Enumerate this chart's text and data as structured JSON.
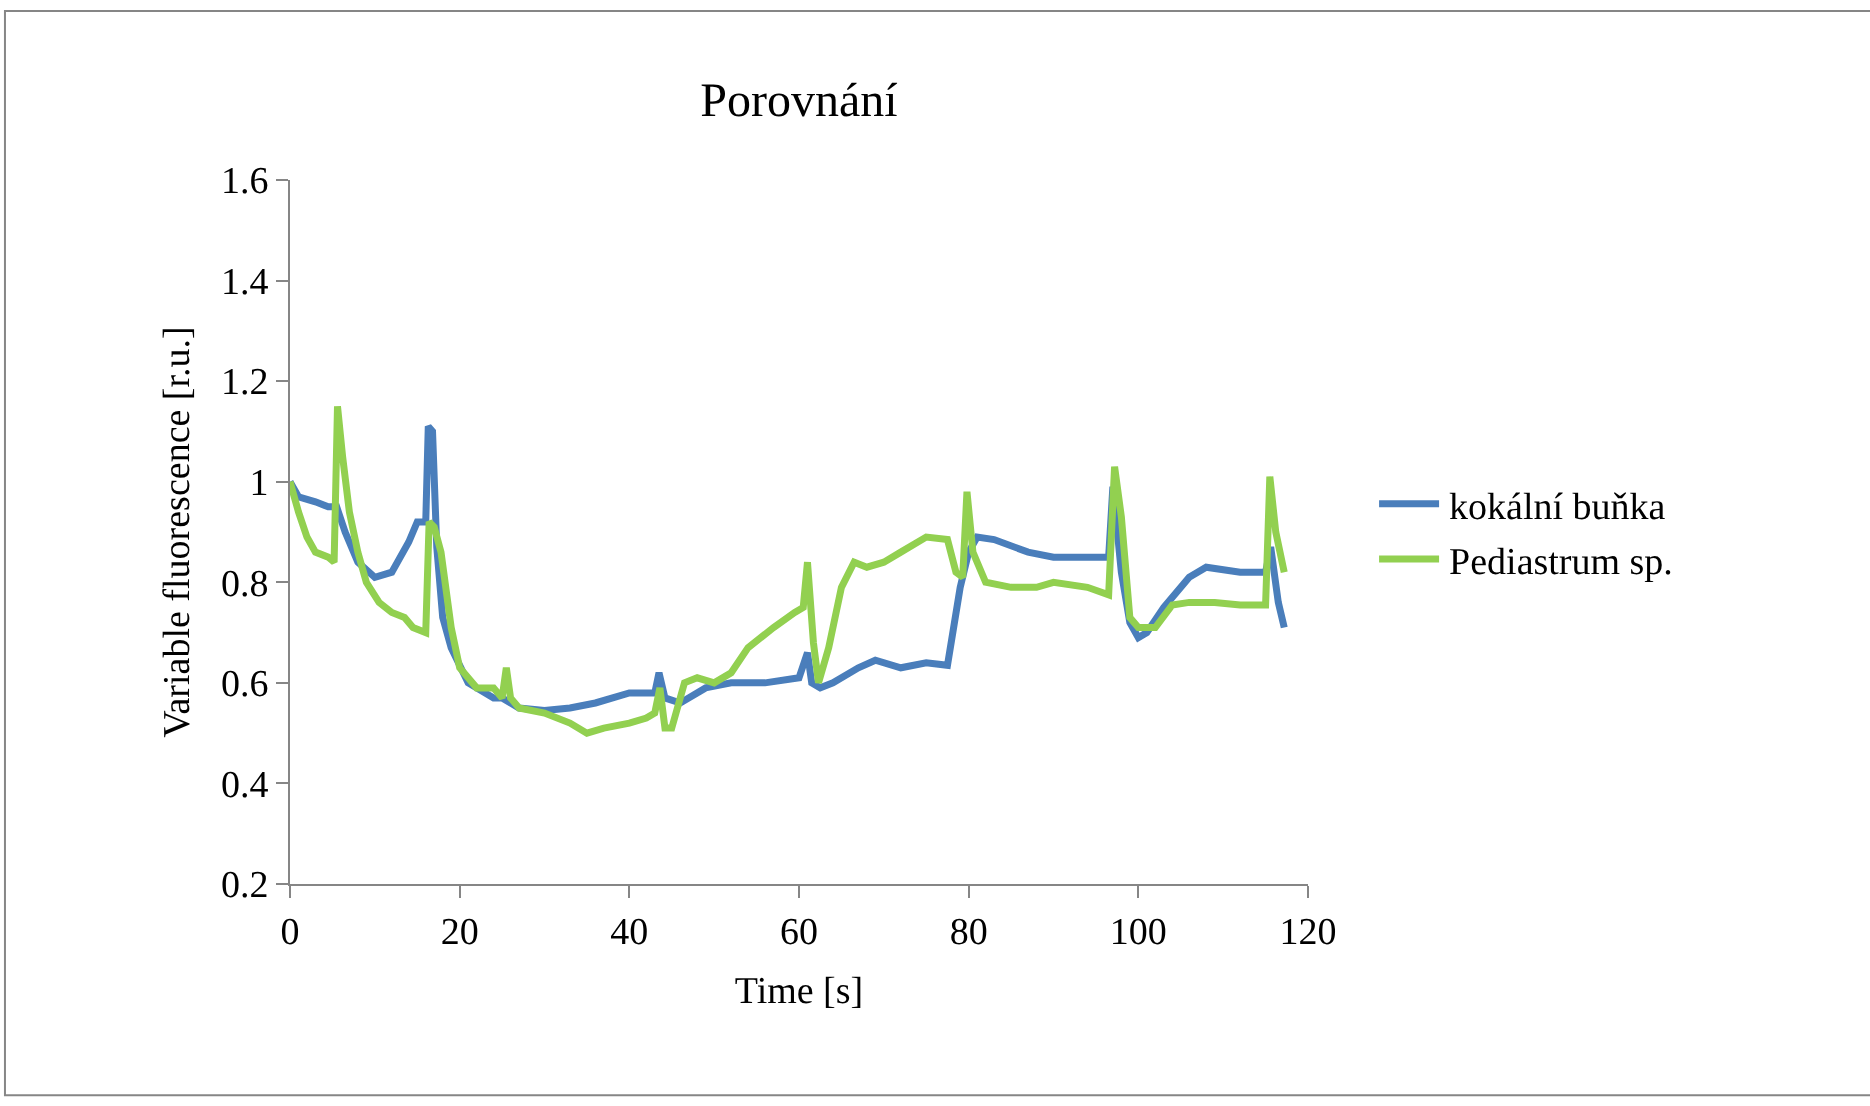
{
  "chart_data": {
    "type": "line",
    "title": "Porovnání",
    "xlabel": "Time [s]",
    "ylabel": "Variable fluorescence [r.u.]",
    "xlim": [
      0,
      120
    ],
    "xticks": [
      0,
      20,
      40,
      60,
      80,
      100,
      120
    ],
    "ylim": [
      0.2,
      1.6
    ],
    "yticks": [
      {
        "value": 0.2,
        "label": "0.2"
      },
      {
        "value": 0.4,
        "label": "0.4"
      },
      {
        "value": 0.6,
        "label": "0.6"
      },
      {
        "value": 0.8,
        "label": "0.8"
      },
      {
        "value": 1,
        "label": "1"
      },
      {
        "value": 1.2,
        "label": "1.2"
      },
      {
        "value": 1.4,
        "label": "1.4"
      },
      {
        "value": 1.6,
        "label": "1.6"
      }
    ],
    "legend": "right",
    "marker": "none",
    "line_style": "solid",
    "series": [
      {
        "name": "kokální buňka",
        "color": "#4a7ebb",
        "x": [
          0,
          1,
          3,
          4.5,
          5.5,
          6.5,
          8,
          10,
          12,
          14,
          15,
          16,
          16.3,
          16.8,
          17.3,
          18,
          19,
          21,
          24,
          25,
          27,
          30,
          33,
          36,
          40,
          43,
          43.5,
          44.2,
          46,
          49,
          52,
          56,
          60,
          61,
          61.5,
          62.5,
          64,
          67,
          69,
          72,
          75,
          77.5,
          79,
          80,
          81,
          83,
          87,
          90,
          96.5,
          97,
          98,
          99,
          100,
          101,
          103,
          106,
          108,
          112,
          115,
          115.6,
          116.5,
          117.2
        ],
        "values": [
          1.0,
          0.97,
          0.96,
          0.95,
          0.95,
          0.9,
          0.84,
          0.81,
          0.82,
          0.88,
          0.92,
          0.92,
          1.11,
          1.1,
          0.87,
          0.73,
          0.67,
          0.6,
          0.57,
          0.57,
          0.55,
          0.545,
          0.55,
          0.56,
          0.58,
          0.58,
          0.62,
          0.57,
          0.56,
          0.59,
          0.6,
          0.6,
          0.61,
          0.66,
          0.6,
          0.59,
          0.6,
          0.63,
          0.645,
          0.63,
          0.64,
          0.635,
          0.79,
          0.86,
          0.89,
          0.885,
          0.86,
          0.85,
          0.85,
          0.99,
          0.82,
          0.72,
          0.69,
          0.7,
          0.75,
          0.81,
          0.83,
          0.82,
          0.82,
          0.87,
          0.76,
          0.71
        ]
      },
      {
        "name": "Pediastrum sp.",
        "color": "#92d050",
        "x": [
          0,
          1,
          2,
          3,
          4.5,
          5.2,
          5.6,
          6.2,
          7,
          8,
          9,
          10.5,
          12,
          13.5,
          14.5,
          16,
          16.4,
          17,
          17.8,
          19,
          20,
          22,
          24,
          25,
          25.5,
          26,
          27,
          30,
          33,
          35,
          37,
          40,
          42,
          43,
          43.6,
          44.2,
          45,
          46.5,
          48,
          50,
          52,
          54,
          57,
          59.5,
          60.5,
          61,
          61.7,
          62.3,
          63.5,
          65,
          66.5,
          68,
          70,
          72,
          75,
          77.5,
          78.5,
          79.3,
          79.8,
          80.5,
          82,
          85,
          88,
          90,
          94,
          96.5,
          97.2,
          98,
          99,
          100,
          102,
          104,
          106,
          109,
          112,
          115,
          115.5,
          116.2,
          117.2
        ],
        "values": [
          1.0,
          0.94,
          0.89,
          0.86,
          0.85,
          0.84,
          1.15,
          1.05,
          0.94,
          0.86,
          0.8,
          0.76,
          0.74,
          0.73,
          0.71,
          0.7,
          0.92,
          0.91,
          0.86,
          0.71,
          0.63,
          0.59,
          0.59,
          0.57,
          0.63,
          0.57,
          0.55,
          0.54,
          0.52,
          0.5,
          0.51,
          0.52,
          0.53,
          0.54,
          0.59,
          0.51,
          0.51,
          0.6,
          0.61,
          0.6,
          0.62,
          0.67,
          0.71,
          0.74,
          0.75,
          0.84,
          0.68,
          0.6,
          0.67,
          0.79,
          0.84,
          0.83,
          0.84,
          0.86,
          0.89,
          0.885,
          0.82,
          0.81,
          0.98,
          0.86,
          0.8,
          0.79,
          0.79,
          0.8,
          0.79,
          0.775,
          1.03,
          0.93,
          0.73,
          0.71,
          0.71,
          0.755,
          0.76,
          0.76,
          0.755,
          0.755,
          1.01,
          0.9,
          0.82
        ]
      }
    ]
  }
}
